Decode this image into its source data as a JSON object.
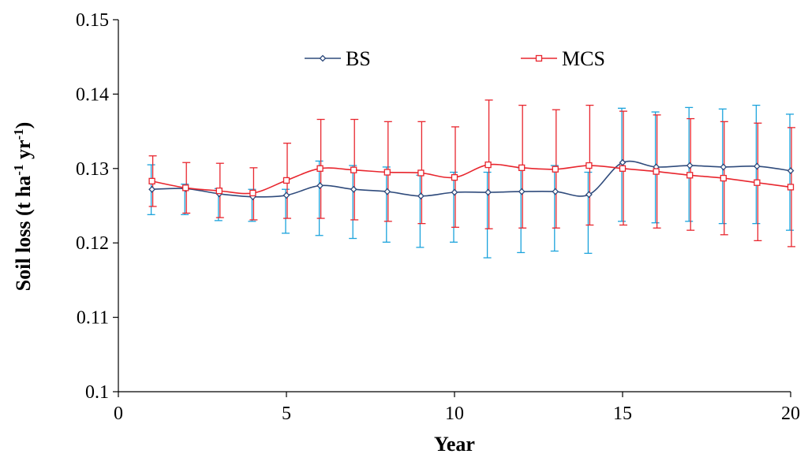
{
  "chart_data": {
    "type": "line",
    "title": "",
    "xlabel": "Year",
    "ylabel": "Soil loss (t ha-1 yr-1)",
    "ylabel_parts": {
      "a": "Soil loss (t ha",
      "sup1": "-1",
      "b": " yr",
      "sup2": "-1",
      "c": ")"
    },
    "xlim": [
      0,
      20
    ],
    "ylim": [
      0.1,
      0.15
    ],
    "xticks": [
      0,
      5,
      10,
      15,
      20
    ],
    "xtick_labels": [
      "0",
      "5",
      "10",
      "15",
      "20"
    ],
    "yticks": [
      0.1,
      0.11,
      0.12,
      0.13,
      0.14,
      0.15
    ],
    "ytick_labels": [
      "0.1",
      "0.11",
      "0.12",
      "0.13",
      "0.14",
      "0.15"
    ],
    "grid": false,
    "legend_position": "top-center",
    "x": [
      1,
      2,
      3,
      4,
      5,
      6,
      7,
      8,
      9,
      10,
      11,
      12,
      13,
      14,
      15,
      16,
      17,
      18,
      19,
      20
    ],
    "series": [
      {
        "name": "BS",
        "color": "#2f4b7c",
        "error_color": "#1ba3dc",
        "marker": "diamond",
        "values": [
          0.1272,
          0.1273,
          0.1266,
          0.1262,
          0.1264,
          0.1277,
          0.1272,
          0.1269,
          0.1263,
          0.1268,
          0.1268,
          0.1269,
          0.1269,
          0.1265,
          0.1308,
          0.1302,
          0.1304,
          0.1302,
          0.1303,
          0.1297
        ],
        "error_low": [
          0.1238,
          0.1238,
          0.123,
          0.1229,
          0.1213,
          0.121,
          0.1206,
          0.1201,
          0.1194,
          0.1201,
          0.118,
          0.1187,
          0.1189,
          0.1186,
          0.1229,
          0.1227,
          0.1229,
          0.1226,
          0.1226,
          0.1217
        ],
        "error_high": [
          0.1305,
          0.1279,
          0.1273,
          0.1272,
          0.1272,
          0.131,
          0.1304,
          0.1302,
          0.1291,
          0.1295,
          0.1295,
          0.1301,
          0.1304,
          0.1295,
          0.1381,
          0.1376,
          0.1382,
          0.138,
          0.1385,
          0.1373
        ]
      },
      {
        "name": "MCS",
        "color": "#e8262e",
        "error_color": "#e8262e",
        "marker": "square",
        "values": [
          0.1283,
          0.1274,
          0.127,
          0.1267,
          0.1284,
          0.13,
          0.1298,
          0.1295,
          0.1294,
          0.1288,
          0.1305,
          0.1301,
          0.1299,
          0.1304,
          0.13,
          0.1296,
          0.1291,
          0.1287,
          0.1281,
          0.1275
        ],
        "error_low": [
          0.1249,
          0.124,
          0.1234,
          0.1231,
          0.1233,
          0.1233,
          0.1231,
          0.1229,
          0.1226,
          0.1221,
          0.1219,
          0.122,
          0.122,
          0.1224,
          0.1224,
          0.122,
          0.1217,
          0.1211,
          0.1203,
          0.1195
        ],
        "error_high": [
          0.1317,
          0.1308,
          0.1307,
          0.1301,
          0.1334,
          0.1366,
          0.1366,
          0.1363,
          0.1363,
          0.1356,
          0.1392,
          0.1385,
          0.1379,
          0.1385,
          0.1377,
          0.1372,
          0.1367,
          0.1363,
          0.1361,
          0.1355
        ]
      }
    ]
  }
}
